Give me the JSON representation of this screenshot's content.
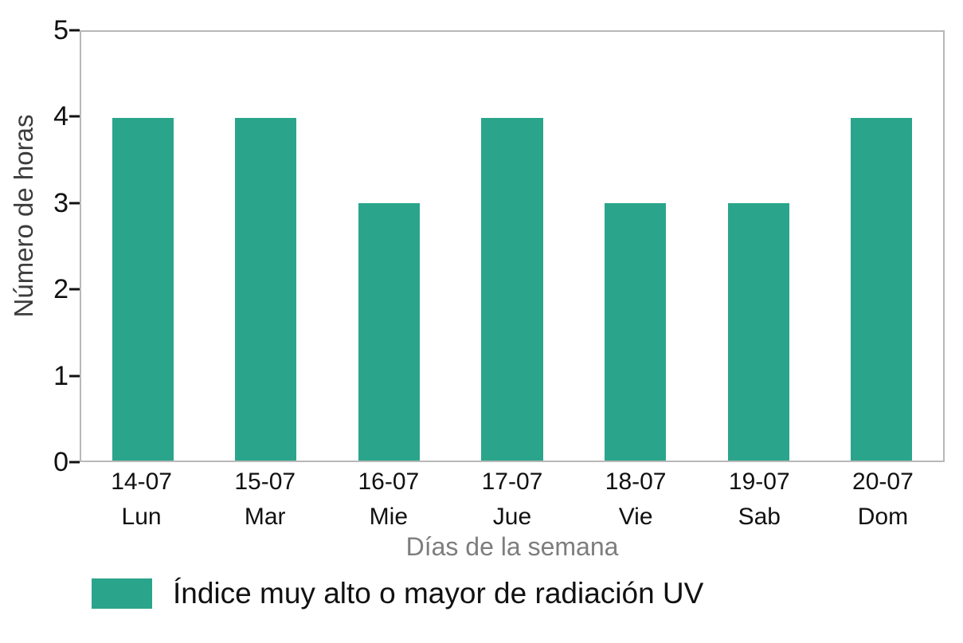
{
  "chart_data": {
    "type": "bar",
    "categories": [
      "14-07",
      "15-07",
      "16-07",
      "17-07",
      "18-07",
      "19-07",
      "20-07"
    ],
    "day_labels": [
      "Lun",
      "Mar",
      "Mie",
      "Jue",
      "Vie",
      "Sab",
      "Dom"
    ],
    "values": [
      4,
      4,
      3,
      4,
      3,
      3,
      4
    ],
    "title": "",
    "xlabel": "Días de la semana",
    "ylabel": "Número de horas",
    "ylim": [
      0,
      5
    ],
    "yticks": [
      0,
      1,
      2,
      3,
      4,
      5
    ],
    "grid": false,
    "bar_color": "#2aa58b",
    "legend_position": "bottom-left",
    "legend": [
      {
        "label": "Índice muy alto o mayor de radiación UV",
        "color": "#2aa58b"
      }
    ]
  }
}
